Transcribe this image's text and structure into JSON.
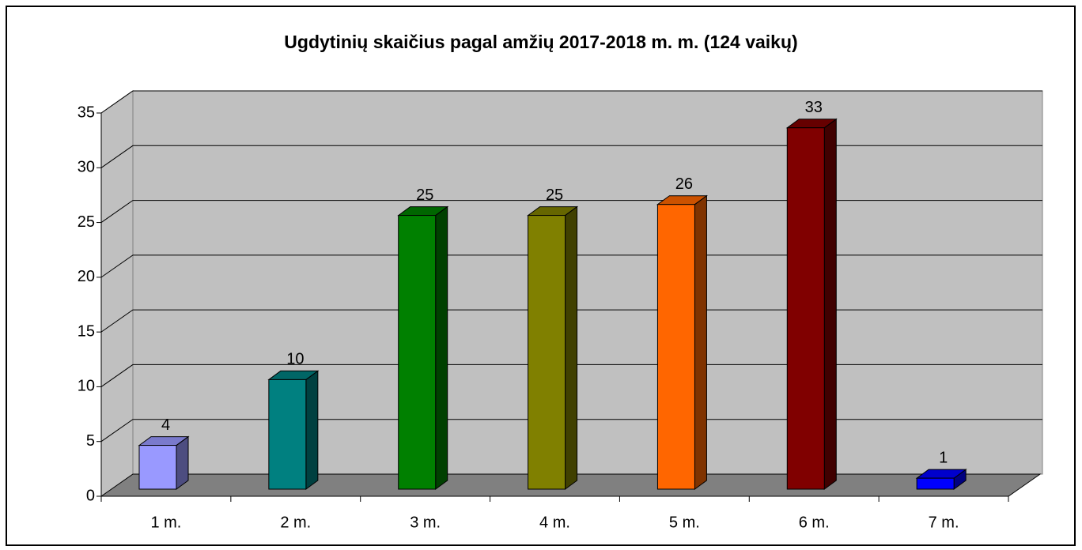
{
  "chart_data": {
    "type": "bar3d",
    "title": "Ugdytinių skaičius pagal amžių 2017-2018 m. m. (124 vaikų)",
    "categories": [
      "1 m.",
      "2 m.",
      "3 m.",
      "4 m.",
      "5 m.",
      "6 m.",
      "7 m."
    ],
    "values": [
      4,
      10,
      25,
      25,
      26,
      33,
      1
    ],
    "colors": [
      "#9999ff",
      "#008080",
      "#008000",
      "#808000",
      "#ff6600",
      "#800000",
      "#0000ff"
    ],
    "ylim": [
      0,
      35
    ],
    "yticks": [
      0,
      5,
      10,
      15,
      20,
      25,
      30,
      35
    ],
    "grid": true
  }
}
